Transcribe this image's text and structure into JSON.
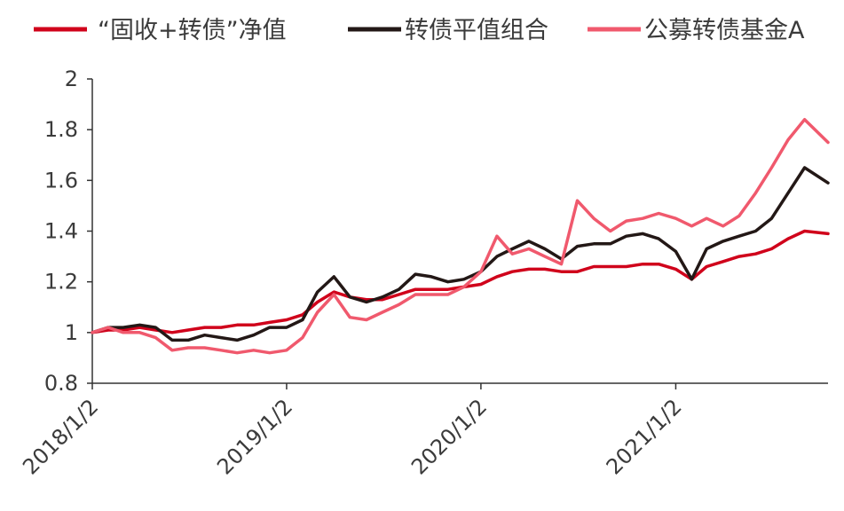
{
  "chart_data": {
    "type": "line",
    "title": "",
    "xlabel": "",
    "ylabel": "",
    "ylim": [
      0.8,
      2.0
    ],
    "yticks": [
      "0.8",
      "1",
      "1.2",
      "1.4",
      "1.6",
      "1.8",
      "2"
    ],
    "xlim": [
      "2018-01-02",
      "2021-10-15"
    ],
    "xticks": [
      {
        "date": "2018-01-02",
        "label": "2018/1/2"
      },
      {
        "date": "2019-01-02",
        "label": "2019/1/2"
      },
      {
        "date": "2020-01-02",
        "label": "2020/1/2"
      },
      {
        "date": "2021-01-02",
        "label": "2021/1/2"
      }
    ],
    "legend_position": "top",
    "grid": false,
    "series": [
      {
        "name": "“固收+转债”净值",
        "color": "#d0021b",
        "points": [
          [
            "2018-01-02",
            1.0
          ],
          [
            "2018-02-01",
            1.01
          ],
          [
            "2018-03-01",
            1.01
          ],
          [
            "2018-04-01",
            1.02
          ],
          [
            "2018-05-01",
            1.01
          ],
          [
            "2018-06-01",
            1.0
          ],
          [
            "2018-07-01",
            1.01
          ],
          [
            "2018-08-01",
            1.02
          ],
          [
            "2018-09-01",
            1.02
          ],
          [
            "2018-10-01",
            1.03
          ],
          [
            "2018-11-01",
            1.03
          ],
          [
            "2018-12-01",
            1.04
          ],
          [
            "2019-01-02",
            1.05
          ],
          [
            "2019-02-01",
            1.07
          ],
          [
            "2019-03-01",
            1.12
          ],
          [
            "2019-04-01",
            1.16
          ],
          [
            "2019-05-01",
            1.14
          ],
          [
            "2019-06-01",
            1.13
          ],
          [
            "2019-07-01",
            1.13
          ],
          [
            "2019-08-01",
            1.15
          ],
          [
            "2019-09-01",
            1.17
          ],
          [
            "2019-10-01",
            1.17
          ],
          [
            "2019-11-01",
            1.17
          ],
          [
            "2019-12-01",
            1.18
          ],
          [
            "2020-01-02",
            1.19
          ],
          [
            "2020-02-01",
            1.22
          ],
          [
            "2020-03-01",
            1.24
          ],
          [
            "2020-04-01",
            1.25
          ],
          [
            "2020-05-01",
            1.25
          ],
          [
            "2020-06-01",
            1.24
          ],
          [
            "2020-07-01",
            1.24
          ],
          [
            "2020-08-01",
            1.26
          ],
          [
            "2020-09-01",
            1.26
          ],
          [
            "2020-10-01",
            1.26
          ],
          [
            "2020-11-01",
            1.27
          ],
          [
            "2020-12-01",
            1.27
          ],
          [
            "2021-01-02",
            1.25
          ],
          [
            "2021-02-01",
            1.21
          ],
          [
            "2021-03-01",
            1.26
          ],
          [
            "2021-04-01",
            1.28
          ],
          [
            "2021-05-01",
            1.3
          ],
          [
            "2021-06-01",
            1.31
          ],
          [
            "2021-07-01",
            1.33
          ],
          [
            "2021-08-01",
            1.37
          ],
          [
            "2021-09-01",
            1.4
          ],
          [
            "2021-10-15",
            1.39
          ]
        ]
      },
      {
        "name": "转债平值组合",
        "color": "#231816",
        "points": [
          [
            "2018-01-02",
            1.0
          ],
          [
            "2018-02-01",
            1.02
          ],
          [
            "2018-03-01",
            1.02
          ],
          [
            "2018-04-01",
            1.03
          ],
          [
            "2018-05-01",
            1.02
          ],
          [
            "2018-06-01",
            0.97
          ],
          [
            "2018-07-01",
            0.97
          ],
          [
            "2018-08-01",
            0.99
          ],
          [
            "2018-09-01",
            0.98
          ],
          [
            "2018-10-01",
            0.97
          ],
          [
            "2018-11-01",
            0.99
          ],
          [
            "2018-12-01",
            1.02
          ],
          [
            "2019-01-02",
            1.02
          ],
          [
            "2019-02-01",
            1.05
          ],
          [
            "2019-03-01",
            1.16
          ],
          [
            "2019-04-01",
            1.22
          ],
          [
            "2019-05-01",
            1.14
          ],
          [
            "2019-06-01",
            1.12
          ],
          [
            "2019-07-01",
            1.14
          ],
          [
            "2019-08-01",
            1.17
          ],
          [
            "2019-09-01",
            1.23
          ],
          [
            "2019-10-01",
            1.22
          ],
          [
            "2019-11-01",
            1.2
          ],
          [
            "2019-12-01",
            1.21
          ],
          [
            "2020-01-02",
            1.24
          ],
          [
            "2020-02-01",
            1.3
          ],
          [
            "2020-03-01",
            1.33
          ],
          [
            "2020-04-01",
            1.36
          ],
          [
            "2020-05-01",
            1.33
          ],
          [
            "2020-06-01",
            1.29
          ],
          [
            "2020-07-01",
            1.34
          ],
          [
            "2020-08-01",
            1.35
          ],
          [
            "2020-09-01",
            1.35
          ],
          [
            "2020-10-01",
            1.38
          ],
          [
            "2020-11-01",
            1.39
          ],
          [
            "2020-12-01",
            1.37
          ],
          [
            "2021-01-02",
            1.32
          ],
          [
            "2021-02-01",
            1.21
          ],
          [
            "2021-03-01",
            1.33
          ],
          [
            "2021-04-01",
            1.36
          ],
          [
            "2021-05-01",
            1.38
          ],
          [
            "2021-06-01",
            1.4
          ],
          [
            "2021-07-01",
            1.45
          ],
          [
            "2021-08-01",
            1.55
          ],
          [
            "2021-09-01",
            1.65
          ],
          [
            "2021-10-15",
            1.59
          ]
        ]
      },
      {
        "name": "公募转债基金A",
        "color": "#f0596d",
        "points": [
          [
            "2018-01-02",
            1.0
          ],
          [
            "2018-02-01",
            1.02
          ],
          [
            "2018-03-01",
            1.0
          ],
          [
            "2018-04-01",
            1.0
          ],
          [
            "2018-05-01",
            0.98
          ],
          [
            "2018-06-01",
            0.93
          ],
          [
            "2018-07-01",
            0.94
          ],
          [
            "2018-08-01",
            0.94
          ],
          [
            "2018-09-01",
            0.93
          ],
          [
            "2018-10-01",
            0.92
          ],
          [
            "2018-11-01",
            0.93
          ],
          [
            "2018-12-01",
            0.92
          ],
          [
            "2019-01-02",
            0.93
          ],
          [
            "2019-02-01",
            0.98
          ],
          [
            "2019-03-01",
            1.08
          ],
          [
            "2019-04-01",
            1.15
          ],
          [
            "2019-05-01",
            1.06
          ],
          [
            "2019-06-01",
            1.05
          ],
          [
            "2019-07-01",
            1.08
          ],
          [
            "2019-08-01",
            1.11
          ],
          [
            "2019-09-01",
            1.15
          ],
          [
            "2019-10-01",
            1.15
          ],
          [
            "2019-11-01",
            1.15
          ],
          [
            "2019-12-01",
            1.18
          ],
          [
            "2020-01-02",
            1.24
          ],
          [
            "2020-02-01",
            1.38
          ],
          [
            "2020-03-01",
            1.31
          ],
          [
            "2020-04-01",
            1.33
          ],
          [
            "2020-05-01",
            1.3
          ],
          [
            "2020-06-01",
            1.27
          ],
          [
            "2020-07-01",
            1.52
          ],
          [
            "2020-08-01",
            1.45
          ],
          [
            "2020-09-01",
            1.4
          ],
          [
            "2020-10-01",
            1.44
          ],
          [
            "2020-11-01",
            1.45
          ],
          [
            "2020-12-01",
            1.47
          ],
          [
            "2021-01-02",
            1.45
          ],
          [
            "2021-02-01",
            1.42
          ],
          [
            "2021-03-01",
            1.45
          ],
          [
            "2021-04-01",
            1.42
          ],
          [
            "2021-05-01",
            1.46
          ],
          [
            "2021-06-01",
            1.55
          ],
          [
            "2021-07-01",
            1.65
          ],
          [
            "2021-08-01",
            1.76
          ],
          [
            "2021-09-01",
            1.84
          ],
          [
            "2021-10-15",
            1.75
          ]
        ]
      }
    ]
  }
}
